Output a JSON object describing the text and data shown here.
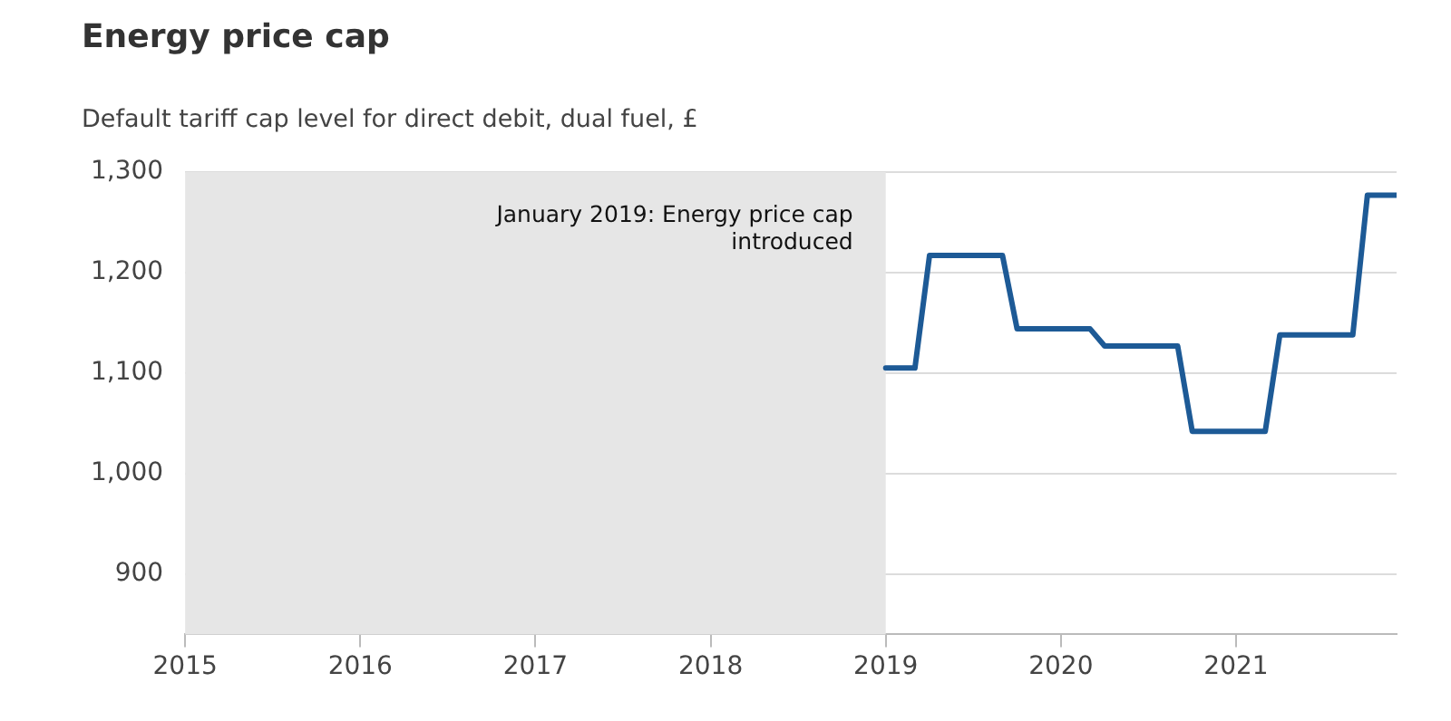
{
  "chart_data": {
    "type": "line",
    "title": "Energy price cap",
    "subtitle": "Default tariff cap level for direct debit, dual fuel, £",
    "x": [
      "2019-01",
      "2019-03",
      "2019-04",
      "2019-09",
      "2019-10",
      "2020-03",
      "2020-04",
      "2020-09",
      "2020-10",
      "2021-03",
      "2021-04",
      "2021-09",
      "2021-10",
      "2021-12"
    ],
    "series": [
      {
        "color": "#1d5a96",
        "values": [
          1105,
          1105,
          1217,
          1217,
          1144,
          1144,
          1127,
          1127,
          1042,
          1042,
          1138,
          1138,
          1277,
          1277
        ]
      }
    ],
    "xlim": [
      "2015",
      "2021-12"
    ],
    "xticks": [
      "2015",
      "2016",
      "2017",
      "2018",
      "2019",
      "2020",
      "2021"
    ],
    "ylim": [
      840,
      1300
    ],
    "yticks": [
      {
        "value": 900,
        "label": "900"
      },
      {
        "value": 1000,
        "label": "1,000"
      },
      {
        "value": 1100,
        "label": "1,100"
      },
      {
        "value": 1200,
        "label": "1,200"
      },
      {
        "value": 1300,
        "label": "1,300"
      }
    ],
    "bands": [
      {
        "axis": "x",
        "from": "2015",
        "to": "2019",
        "label": "January 2019: Energy price cap introduced",
        "color": "#e6e6e6"
      }
    ],
    "grid": "y",
    "legend": false,
    "marker": "none",
    "line_style": "solid"
  }
}
